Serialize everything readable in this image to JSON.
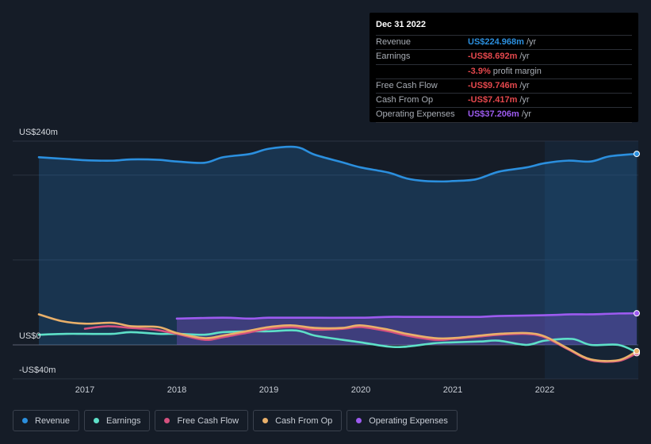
{
  "tooltip": {
    "date": "Dec 31 2022",
    "rows": [
      {
        "label": "Revenue",
        "value": "US$224.968m",
        "unit": "/yr",
        "color": "#2b8fde"
      },
      {
        "label": "Earnings",
        "value": "-US$8.692m",
        "unit": "/yr",
        "color": "#e5484d"
      },
      {
        "label": "",
        "value": "-3.9%",
        "unit": "profit margin",
        "color": "#e5484d"
      },
      {
        "label": "Free Cash Flow",
        "value": "-US$9.746m",
        "unit": "/yr",
        "color": "#e5484d"
      },
      {
        "label": "Cash From Op",
        "value": "-US$7.417m",
        "unit": "/yr",
        "color": "#e5484d"
      },
      {
        "label": "Operating Expenses",
        "value": "US$37.206m",
        "unit": "/yr",
        "color": "#9d5bf0"
      }
    ]
  },
  "chart_data": {
    "type": "line",
    "y_labels": {
      "top": "US$240m",
      "zero": "US$0",
      "bottom": "-US$40m"
    },
    "ylim": [
      -40,
      240
    ],
    "xlim": [
      2016.5,
      2023.0
    ],
    "x_ticks": [
      "2017",
      "2018",
      "2019",
      "2020",
      "2021",
      "2022"
    ],
    "x_tick_values": [
      2017,
      2018,
      2019,
      2020,
      2021,
      2022
    ],
    "highlight_start": 2022.0,
    "grid": true,
    "series": [
      {
        "name": "Revenue",
        "color": "#2b8fde",
        "fill": true,
        "points": [
          [
            2016.5,
            221
          ],
          [
            2016.8,
            219
          ],
          [
            2017.0,
            217.5
          ],
          [
            2017.3,
            217
          ],
          [
            2017.5,
            218.5
          ],
          [
            2017.8,
            218
          ],
          [
            2018.0,
            216
          ],
          [
            2018.3,
            214.5
          ],
          [
            2018.5,
            221
          ],
          [
            2018.8,
            225
          ],
          [
            2019.0,
            231
          ],
          [
            2019.3,
            233
          ],
          [
            2019.5,
            224
          ],
          [
            2019.8,
            215
          ],
          [
            2020.0,
            209
          ],
          [
            2020.3,
            203
          ],
          [
            2020.5,
            196
          ],
          [
            2020.7,
            193
          ],
          [
            2020.9,
            192.5
          ],
          [
            2021.0,
            193
          ],
          [
            2021.25,
            195
          ],
          [
            2021.5,
            204
          ],
          [
            2021.8,
            209
          ],
          [
            2022.0,
            214
          ],
          [
            2022.25,
            217
          ],
          [
            2022.5,
            216
          ],
          [
            2022.7,
            222
          ],
          [
            2023.0,
            225
          ]
        ]
      },
      {
        "name": "Earnings",
        "color": "#5ee0c8",
        "points": [
          [
            2016.5,
            12
          ],
          [
            2016.8,
            13
          ],
          [
            2017.0,
            13
          ],
          [
            2017.3,
            13
          ],
          [
            2017.5,
            15
          ],
          [
            2017.8,
            13
          ],
          [
            2018.0,
            13
          ],
          [
            2018.3,
            12
          ],
          [
            2018.5,
            15
          ],
          [
            2018.8,
            16
          ],
          [
            2019.0,
            16
          ],
          [
            2019.3,
            17
          ],
          [
            2019.5,
            11
          ],
          [
            2019.8,
            6
          ],
          [
            2020.0,
            3
          ],
          [
            2020.3,
            -2
          ],
          [
            2020.5,
            -2
          ],
          [
            2020.8,
            2
          ],
          [
            2021.0,
            3
          ],
          [
            2021.3,
            4
          ],
          [
            2021.5,
            5
          ],
          [
            2021.8,
            0
          ],
          [
            2022.0,
            5
          ],
          [
            2022.3,
            7
          ],
          [
            2022.5,
            0
          ],
          [
            2022.8,
            0
          ],
          [
            2023.0,
            -8.7
          ]
        ]
      },
      {
        "name": "Free Cash Flow",
        "color": "#d5517f",
        "points": [
          [
            2017.0,
            19
          ],
          [
            2017.25,
            22
          ],
          [
            2017.5,
            20
          ],
          [
            2017.75,
            18
          ],
          [
            2018.0,
            13
          ],
          [
            2018.3,
            6
          ],
          [
            2018.5,
            9
          ],
          [
            2018.8,
            15
          ],
          [
            2019.0,
            19
          ],
          [
            2019.25,
            21
          ],
          [
            2019.5,
            18
          ],
          [
            2019.8,
            19
          ],
          [
            2020.0,
            21
          ],
          [
            2020.3,
            16
          ],
          [
            2020.5,
            11
          ],
          [
            2020.8,
            6
          ],
          [
            2021.0,
            7
          ],
          [
            2021.3,
            10
          ],
          [
            2021.5,
            12
          ],
          [
            2021.8,
            13
          ],
          [
            2022.0,
            9
          ],
          [
            2022.25,
            -5
          ],
          [
            2022.5,
            -18
          ],
          [
            2022.8,
            -19
          ],
          [
            2023.0,
            -9.7
          ]
        ]
      },
      {
        "name": "Cash From Op",
        "color": "#e9b06a",
        "points": [
          [
            2016.5,
            36
          ],
          [
            2016.75,
            28
          ],
          [
            2017.0,
            25
          ],
          [
            2017.3,
            26
          ],
          [
            2017.5,
            22
          ],
          [
            2017.8,
            21
          ],
          [
            2018.0,
            14
          ],
          [
            2018.3,
            8
          ],
          [
            2018.5,
            11
          ],
          [
            2018.8,
            17
          ],
          [
            2019.0,
            21
          ],
          [
            2019.25,
            23
          ],
          [
            2019.5,
            20
          ],
          [
            2019.8,
            20
          ],
          [
            2020.0,
            23
          ],
          [
            2020.3,
            18
          ],
          [
            2020.5,
            13
          ],
          [
            2020.8,
            8
          ],
          [
            2021.0,
            8
          ],
          [
            2021.3,
            11
          ],
          [
            2021.5,
            13
          ],
          [
            2021.8,
            14
          ],
          [
            2022.0,
            10
          ],
          [
            2022.25,
            -4
          ],
          [
            2022.5,
            -17
          ],
          [
            2022.8,
            -18
          ],
          [
            2023.0,
            -7.4
          ]
        ]
      },
      {
        "name": "Operating Expenses",
        "color": "#9d5bf0",
        "fill": true,
        "points": [
          [
            2018.0,
            31
          ],
          [
            2018.5,
            32
          ],
          [
            2018.8,
            31
          ],
          [
            2019.0,
            32
          ],
          [
            2019.5,
            32
          ],
          [
            2020.0,
            32
          ],
          [
            2020.3,
            33
          ],
          [
            2020.5,
            33
          ],
          [
            2021.0,
            33
          ],
          [
            2021.3,
            33
          ],
          [
            2021.5,
            34
          ],
          [
            2022.0,
            35
          ],
          [
            2022.3,
            36
          ],
          [
            2022.5,
            36
          ],
          [
            2022.8,
            37
          ],
          [
            2023.0,
            37.2
          ]
        ]
      }
    ]
  },
  "legend": [
    {
      "label": "Revenue",
      "color": "#2b8fde"
    },
    {
      "label": "Earnings",
      "color": "#5ee0c8"
    },
    {
      "label": "Free Cash Flow",
      "color": "#d5517f"
    },
    {
      "label": "Cash From Op",
      "color": "#e9b06a"
    },
    {
      "label": "Operating Expenses",
      "color": "#9d5bf0"
    }
  ]
}
